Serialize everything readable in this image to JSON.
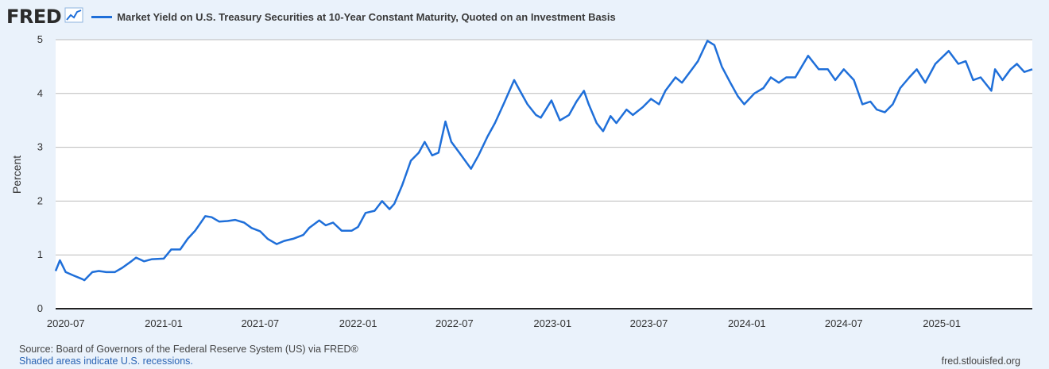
{
  "logo": {
    "text": "FRED"
  },
  "colors": {
    "series": "#1f6fd9",
    "background": "#eaf2fb",
    "plot": "#ffffff",
    "grid": "#bbbbbb"
  },
  "footer": {
    "source": "Source: Board of Governors of the Federal Reserve System (US) via FRED®",
    "note": "Shaded areas indicate U.S. recessions.",
    "site": "fred.stlouisfed.org"
  },
  "chart_data": {
    "type": "line",
    "title": "",
    "xlabel": "",
    "ylabel": "Percent",
    "ylim": [
      0,
      5
    ],
    "xlim": [
      "2020-06-12",
      "2025-06-20"
    ],
    "yticks": [
      0,
      1,
      2,
      3,
      4,
      5
    ],
    "yticks_labels": [
      "0",
      "1",
      "2",
      "3",
      "4",
      "5"
    ],
    "xticks": [
      "2020-07-01",
      "2021-01-01",
      "2021-07-01",
      "2022-01-01",
      "2022-07-01",
      "2023-01-01",
      "2023-07-01",
      "2024-01-01",
      "2024-07-01",
      "2025-01-01"
    ],
    "xtick_labels": [
      "2020-07",
      "2021-01",
      "2021-07",
      "2022-01",
      "2022-07",
      "2023-01",
      "2023-07",
      "2024-01",
      "2024-07",
      "2025-01"
    ],
    "grid": true,
    "legend": "top-left",
    "series": [
      {
        "name": "Market Yield on U.S. Treasury Securities at 10-Year Constant Maturity, Quoted on an Investment Basis",
        "x": [
          "2020-06-12",
          "2020-06-20",
          "2020-07-01",
          "2020-07-15",
          "2020-08-01",
          "2020-08-05",
          "2020-08-20",
          "2020-09-01",
          "2020-09-15",
          "2020-10-01",
          "2020-10-15",
          "2020-11-01",
          "2020-11-10",
          "2020-11-25",
          "2020-12-10",
          "2021-01-01",
          "2021-01-15",
          "2021-02-01",
          "2021-02-15",
          "2021-03-01",
          "2021-03-20",
          "2021-04-01",
          "2021-04-15",
          "2021-05-01",
          "2021-05-15",
          "2021-06-01",
          "2021-06-15",
          "2021-07-01",
          "2021-07-15",
          "2021-08-01",
          "2021-08-15",
          "2021-09-01",
          "2021-09-20",
          "2021-10-01",
          "2021-10-20",
          "2021-11-01",
          "2021-11-15",
          "2021-12-01",
          "2021-12-20",
          "2022-01-01",
          "2022-01-15",
          "2022-02-01",
          "2022-02-15",
          "2022-03-01",
          "2022-03-10",
          "2022-03-25",
          "2022-04-10",
          "2022-04-25",
          "2022-05-06",
          "2022-05-20",
          "2022-06-01",
          "2022-06-14",
          "2022-06-25",
          "2022-07-10",
          "2022-08-01",
          "2022-08-15",
          "2022-09-01",
          "2022-09-15",
          "2022-10-01",
          "2022-10-21",
          "2022-11-01",
          "2022-11-15",
          "2022-12-01",
          "2022-12-10",
          "2022-12-30",
          "2023-01-15",
          "2023-02-01",
          "2023-02-15",
          "2023-03-01",
          "2023-03-10",
          "2023-03-25",
          "2023-04-06",
          "2023-04-20",
          "2023-05-01",
          "2023-05-20",
          "2023-06-01",
          "2023-06-20",
          "2023-07-05",
          "2023-07-20",
          "2023-08-01",
          "2023-08-20",
          "2023-09-01",
          "2023-09-20",
          "2023-10-01",
          "2023-10-19",
          "2023-11-01",
          "2023-11-15",
          "2023-12-01",
          "2023-12-15",
          "2023-12-27",
          "2024-01-15",
          "2024-02-01",
          "2024-02-15",
          "2024-03-01",
          "2024-03-15",
          "2024-04-01",
          "2024-04-25",
          "2024-05-15",
          "2024-06-01",
          "2024-06-15",
          "2024-07-01",
          "2024-07-20",
          "2024-08-05",
          "2024-08-20",
          "2024-09-01",
          "2024-09-16",
          "2024-10-01",
          "2024-10-15",
          "2024-11-01",
          "2024-11-15",
          "2024-12-01",
          "2024-12-20",
          "2025-01-14",
          "2025-02-01",
          "2025-02-15",
          "2025-03-01",
          "2025-03-15",
          "2025-04-04",
          "2025-04-11",
          "2025-04-25",
          "2025-05-10",
          "2025-05-22",
          "2025-06-05",
          "2025-06-20"
        ],
        "values": [
          0.7,
          0.9,
          0.68,
          0.62,
          0.55,
          0.53,
          0.68,
          0.7,
          0.68,
          0.68,
          0.76,
          0.88,
          0.95,
          0.88,
          0.92,
          0.93,
          1.1,
          1.1,
          1.3,
          1.45,
          1.72,
          1.7,
          1.62,
          1.63,
          1.65,
          1.6,
          1.5,
          1.44,
          1.3,
          1.2,
          1.26,
          1.3,
          1.37,
          1.5,
          1.64,
          1.55,
          1.6,
          1.45,
          1.45,
          1.52,
          1.78,
          1.82,
          2.0,
          1.85,
          1.95,
          2.3,
          2.75,
          2.9,
          3.1,
          2.85,
          2.9,
          3.48,
          3.1,
          2.9,
          2.6,
          2.85,
          3.2,
          3.45,
          3.8,
          4.25,
          4.05,
          3.8,
          3.6,
          3.55,
          3.87,
          3.5,
          3.6,
          3.85,
          4.05,
          3.8,
          3.45,
          3.3,
          3.58,
          3.45,
          3.7,
          3.6,
          3.75,
          3.9,
          3.8,
          4.05,
          4.3,
          4.2,
          4.45,
          4.6,
          4.98,
          4.9,
          4.5,
          4.2,
          3.95,
          3.8,
          4.0,
          4.1,
          4.3,
          4.2,
          4.3,
          4.3,
          4.7,
          4.45,
          4.45,
          4.25,
          4.45,
          4.25,
          3.8,
          3.85,
          3.7,
          3.65,
          3.8,
          4.1,
          4.3,
          4.45,
          4.2,
          4.55,
          4.79,
          4.55,
          4.6,
          4.25,
          4.3,
          4.05,
          4.45,
          4.25,
          4.45,
          4.55,
          4.4,
          4.45
        ]
      }
    ]
  }
}
